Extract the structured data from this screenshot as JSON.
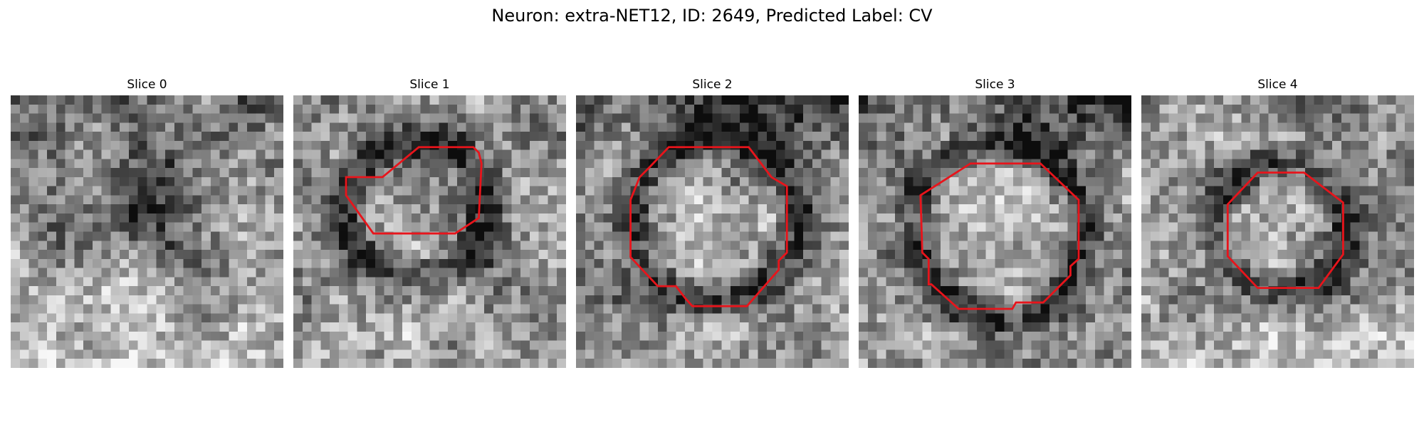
{
  "figure": {
    "title": "Neuron: extra-NET12, ID: 2649, Predicted Label: CV"
  },
  "slices": [
    {
      "title": "Slice 0"
    },
    {
      "title": "Slice 1"
    },
    {
      "title": "Slice 2"
    },
    {
      "title": "Slice 3"
    },
    {
      "title": "Slice 4"
    }
  ],
  "colors": {
    "contour": "#e8141b",
    "background": "#ffffff"
  }
}
